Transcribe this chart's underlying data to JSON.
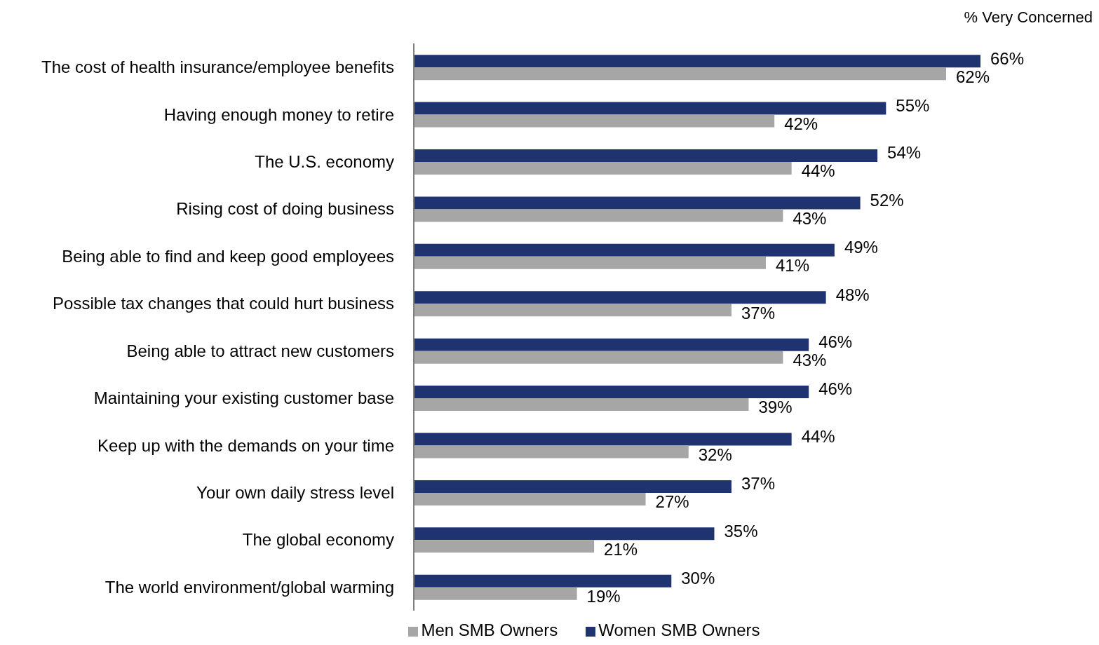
{
  "chart_data": {
    "type": "bar",
    "orientation": "horizontal",
    "categories": [
      "The cost of health insurance/employee benefits",
      "Having enough money to retire",
      "The U.S. economy",
      "Rising cost of doing business",
      "Being able to find and keep good employees",
      "Possible tax changes that could hurt business",
      "Being able to attract new customers",
      "Maintaining your existing customer base",
      "Keep up with the demands on your time",
      "Your own daily stress level",
      "The global economy",
      "The world environment/global warming"
    ],
    "series": [
      {
        "name": "Women SMB Owners",
        "color": "#1f3370",
        "values": [
          66,
          55,
          54,
          52,
          49,
          48,
          46,
          46,
          44,
          37,
          35,
          30
        ],
        "value_labels": [
          "66%",
          "55%",
          "54%",
          "52%",
          "49%",
          "48%",
          "46%",
          "46%",
          "44%",
          "37%",
          "35%",
          "30%"
        ]
      },
      {
        "name": "Men SMB Owners",
        "color": "#a6a6a6",
        "values": [
          62,
          42,
          44,
          43,
          41,
          37,
          43,
          39,
          32,
          27,
          21,
          19
        ],
        "value_labels": [
          "62%",
          "42%",
          "44%",
          "43%",
          "41%",
          "37%",
          "43%",
          "39%",
          "32%",
          "27%",
          "21%",
          "19%"
        ]
      }
    ],
    "annotations": [
      "% Very Concerned"
    ],
    "legend": "bottom",
    "grid": false
  }
}
